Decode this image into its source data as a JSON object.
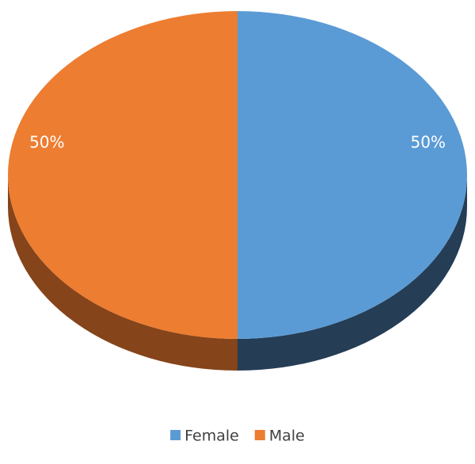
{
  "chart_data": {
    "type": "pie",
    "categories": [
      "Female",
      "Male"
    ],
    "values": [
      50,
      50
    ],
    "value_labels": [
      "50%",
      "50%"
    ],
    "colors": [
      "#5b9bd5",
      "#ed7d31"
    ],
    "side_colors": [
      "#253d55",
      "#86441a"
    ],
    "legend": "bottom"
  }
}
